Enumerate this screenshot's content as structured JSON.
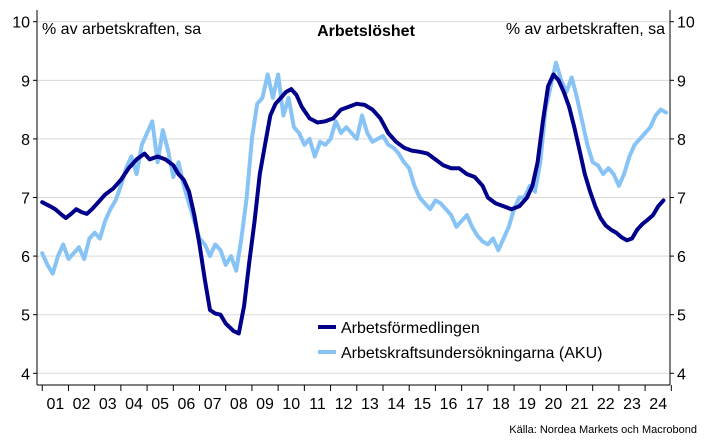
{
  "chart_data": {
    "type": "line",
    "title": "Arbetslöshet",
    "ylabel_left": "% av arbetskraften, sa",
    "ylabel_right": "% av arbetskraften, sa",
    "source": "Källa: Nordea Markets och Macrobond",
    "xlim": [
      2000.8,
      2024.95
    ],
    "ylim": [
      3.8,
      10.2
    ],
    "yticks": [
      4,
      5,
      6,
      7,
      8,
      9,
      10
    ],
    "xticks": [
      {
        "label": "01",
        "x": 2001.5
      },
      {
        "label": "02",
        "x": 2002.5
      },
      {
        "label": "03",
        "x": 2003.5
      },
      {
        "label": "04",
        "x": 2004.5
      },
      {
        "label": "05",
        "x": 2005.5
      },
      {
        "label": "06",
        "x": 2006.5
      },
      {
        "label": "07",
        "x": 2007.5
      },
      {
        "label": "08",
        "x": 2008.5
      },
      {
        "label": "09",
        "x": 2009.5
      },
      {
        "label": "10",
        "x": 2010.5
      },
      {
        "label": "11",
        "x": 2011.5
      },
      {
        "label": "12",
        "x": 2012.5
      },
      {
        "label": "13",
        "x": 2013.5
      },
      {
        "label": "14",
        "x": 2014.5
      },
      {
        "label": "15",
        "x": 2015.5
      },
      {
        "label": "16",
        "x": 2016.5
      },
      {
        "label": "17",
        "x": 2017.5
      },
      {
        "label": "18",
        "x": 2018.5
      },
      {
        "label": "19",
        "x": 2019.5
      },
      {
        "label": "20",
        "x": 2020.5
      },
      {
        "label": "21",
        "x": 2021.5
      },
      {
        "label": "22",
        "x": 2022.5
      },
      {
        "label": "23",
        "x": 2023.5
      },
      {
        "label": "24",
        "x": 2024.5
      }
    ],
    "grid": "horizontal",
    "legend_position": "bottom-right",
    "series": [
      {
        "name": "Arbetsförmedlingen",
        "color": "#00008b",
        "points": [
          [
            2001.0,
            6.92
          ],
          [
            2001.3,
            6.85
          ],
          [
            2001.5,
            6.8
          ],
          [
            2001.7,
            6.72
          ],
          [
            2001.9,
            6.65
          ],
          [
            2002.1,
            6.72
          ],
          [
            2002.3,
            6.8
          ],
          [
            2002.5,
            6.75
          ],
          [
            2002.7,
            6.72
          ],
          [
            2002.9,
            6.8
          ],
          [
            2003.1,
            6.9
          ],
          [
            2003.4,
            7.05
          ],
          [
            2003.7,
            7.15
          ],
          [
            2004.0,
            7.3
          ],
          [
            2004.3,
            7.5
          ],
          [
            2004.6,
            7.65
          ],
          [
            2004.9,
            7.75
          ],
          [
            2005.1,
            7.65
          ],
          [
            2005.4,
            7.7
          ],
          [
            2005.7,
            7.65
          ],
          [
            2006.0,
            7.55
          ],
          [
            2006.2,
            7.4
          ],
          [
            2006.4,
            7.3
          ],
          [
            2006.6,
            7.1
          ],
          [
            2006.8,
            6.7
          ],
          [
            2007.0,
            6.2
          ],
          [
            2007.2,
            5.6
          ],
          [
            2007.4,
            5.08
          ],
          [
            2007.6,
            5.02
          ],
          [
            2007.8,
            5.0
          ],
          [
            2008.0,
            4.85
          ],
          [
            2008.3,
            4.72
          ],
          [
            2008.5,
            4.68
          ],
          [
            2008.7,
            5.15
          ],
          [
            2008.9,
            5.9
          ],
          [
            2009.1,
            6.6
          ],
          [
            2009.3,
            7.4
          ],
          [
            2009.5,
            7.9
          ],
          [
            2009.7,
            8.4
          ],
          [
            2009.9,
            8.6
          ],
          [
            2010.1,
            8.7
          ],
          [
            2010.3,
            8.8
          ],
          [
            2010.5,
            8.85
          ],
          [
            2010.7,
            8.75
          ],
          [
            2010.9,
            8.55
          ],
          [
            2011.2,
            8.35
          ],
          [
            2011.5,
            8.28
          ],
          [
            2011.8,
            8.3
          ],
          [
            2012.1,
            8.35
          ],
          [
            2012.4,
            8.5
          ],
          [
            2012.7,
            8.55
          ],
          [
            2013.0,
            8.6
          ],
          [
            2013.3,
            8.58
          ],
          [
            2013.6,
            8.5
          ],
          [
            2013.9,
            8.35
          ],
          [
            2014.2,
            8.1
          ],
          [
            2014.5,
            7.95
          ],
          [
            2014.8,
            7.85
          ],
          [
            2015.1,
            7.8
          ],
          [
            2015.4,
            7.78
          ],
          [
            2015.7,
            7.75
          ],
          [
            2016.0,
            7.65
          ],
          [
            2016.3,
            7.55
          ],
          [
            2016.6,
            7.5
          ],
          [
            2016.9,
            7.5
          ],
          [
            2017.2,
            7.4
          ],
          [
            2017.5,
            7.35
          ],
          [
            2017.8,
            7.2
          ],
          [
            2018.0,
            7.0
          ],
          [
            2018.3,
            6.9
          ],
          [
            2018.6,
            6.85
          ],
          [
            2018.9,
            6.8
          ],
          [
            2019.2,
            6.85
          ],
          [
            2019.5,
            7.0
          ],
          [
            2019.7,
            7.2
          ],
          [
            2019.9,
            7.6
          ],
          [
            2020.1,
            8.3
          ],
          [
            2020.3,
            8.9
          ],
          [
            2020.5,
            9.1
          ],
          [
            2020.7,
            9.0
          ],
          [
            2020.9,
            8.8
          ],
          [
            2021.1,
            8.55
          ],
          [
            2021.3,
            8.2
          ],
          [
            2021.5,
            7.8
          ],
          [
            2021.7,
            7.4
          ],
          [
            2021.9,
            7.1
          ],
          [
            2022.1,
            6.85
          ],
          [
            2022.3,
            6.65
          ],
          [
            2022.5,
            6.52
          ],
          [
            2022.7,
            6.45
          ],
          [
            2022.9,
            6.4
          ],
          [
            2023.1,
            6.32
          ],
          [
            2023.3,
            6.27
          ],
          [
            2023.5,
            6.3
          ],
          [
            2023.7,
            6.45
          ],
          [
            2023.9,
            6.55
          ],
          [
            2024.1,
            6.62
          ],
          [
            2024.3,
            6.7
          ],
          [
            2024.5,
            6.85
          ],
          [
            2024.7,
            6.95
          ]
        ]
      },
      {
        "name": "Arbetskraftsundersökningarna (AKU)",
        "color": "#87c4f5",
        "points": [
          [
            2001.0,
            6.05
          ],
          [
            2001.2,
            5.85
          ],
          [
            2001.4,
            5.7
          ],
          [
            2001.6,
            6.0
          ],
          [
            2001.8,
            6.2
          ],
          [
            2002.0,
            5.95
          ],
          [
            2002.2,
            6.05
          ],
          [
            2002.4,
            6.15
          ],
          [
            2002.6,
            5.95
          ],
          [
            2002.8,
            6.3
          ],
          [
            2003.0,
            6.4
          ],
          [
            2003.2,
            6.3
          ],
          [
            2003.4,
            6.6
          ],
          [
            2003.6,
            6.8
          ],
          [
            2003.8,
            6.95
          ],
          [
            2004.0,
            7.2
          ],
          [
            2004.2,
            7.5
          ],
          [
            2004.4,
            7.7
          ],
          [
            2004.6,
            7.4
          ],
          [
            2004.8,
            7.9
          ],
          [
            2005.0,
            8.1
          ],
          [
            2005.2,
            8.3
          ],
          [
            2005.4,
            7.6
          ],
          [
            2005.6,
            8.15
          ],
          [
            2005.8,
            7.8
          ],
          [
            2006.0,
            7.35
          ],
          [
            2006.2,
            7.6
          ],
          [
            2006.4,
            7.2
          ],
          [
            2006.6,
            6.9
          ],
          [
            2006.8,
            6.6
          ],
          [
            2007.0,
            6.3
          ],
          [
            2007.2,
            6.2
          ],
          [
            2007.4,
            6.0
          ],
          [
            2007.6,
            6.2
          ],
          [
            2007.8,
            6.1
          ],
          [
            2008.0,
            5.85
          ],
          [
            2008.2,
            6.0
          ],
          [
            2008.4,
            5.75
          ],
          [
            2008.6,
            6.3
          ],
          [
            2008.8,
            7.0
          ],
          [
            2009.0,
            8.0
          ],
          [
            2009.2,
            8.6
          ],
          [
            2009.4,
            8.7
          ],
          [
            2009.6,
            9.1
          ],
          [
            2009.8,
            8.7
          ],
          [
            2010.0,
            9.1
          ],
          [
            2010.2,
            8.4
          ],
          [
            2010.4,
            8.7
          ],
          [
            2010.6,
            8.2
          ],
          [
            2010.8,
            8.1
          ],
          [
            2011.0,
            7.9
          ],
          [
            2011.2,
            8.0
          ],
          [
            2011.4,
            7.7
          ],
          [
            2011.6,
            7.95
          ],
          [
            2011.8,
            7.9
          ],
          [
            2012.0,
            8.0
          ],
          [
            2012.2,
            8.3
          ],
          [
            2012.4,
            8.1
          ],
          [
            2012.6,
            8.2
          ],
          [
            2012.8,
            8.1
          ],
          [
            2013.0,
            8.0
          ],
          [
            2013.2,
            8.4
          ],
          [
            2013.4,
            8.1
          ],
          [
            2013.6,
            7.95
          ],
          [
            2013.8,
            8.0
          ],
          [
            2014.0,
            8.05
          ],
          [
            2014.2,
            7.9
          ],
          [
            2014.4,
            7.85
          ],
          [
            2014.6,
            7.75
          ],
          [
            2014.8,
            7.6
          ],
          [
            2015.0,
            7.5
          ],
          [
            2015.2,
            7.2
          ],
          [
            2015.4,
            7.0
          ],
          [
            2015.6,
            6.9
          ],
          [
            2015.8,
            6.8
          ],
          [
            2016.0,
            6.95
          ],
          [
            2016.2,
            6.9
          ],
          [
            2016.4,
            6.8
          ],
          [
            2016.6,
            6.7
          ],
          [
            2016.8,
            6.5
          ],
          [
            2017.0,
            6.6
          ],
          [
            2017.2,
            6.7
          ],
          [
            2017.4,
            6.5
          ],
          [
            2017.6,
            6.35
          ],
          [
            2017.8,
            6.25
          ],
          [
            2018.0,
            6.2
          ],
          [
            2018.2,
            6.3
          ],
          [
            2018.4,
            6.1
          ],
          [
            2018.6,
            6.3
          ],
          [
            2018.8,
            6.5
          ],
          [
            2019.0,
            6.8
          ],
          [
            2019.2,
            7.0
          ],
          [
            2019.4,
            7.0
          ],
          [
            2019.6,
            7.2
          ],
          [
            2019.8,
            7.1
          ],
          [
            2020.0,
            7.6
          ],
          [
            2020.2,
            8.5
          ],
          [
            2020.4,
            8.9
          ],
          [
            2020.6,
            9.3
          ],
          [
            2020.8,
            9.0
          ],
          [
            2021.0,
            8.8
          ],
          [
            2021.2,
            9.05
          ],
          [
            2021.4,
            8.7
          ],
          [
            2021.6,
            8.3
          ],
          [
            2021.8,
            7.9
          ],
          [
            2022.0,
            7.6
          ],
          [
            2022.2,
            7.55
          ],
          [
            2022.4,
            7.4
          ],
          [
            2022.6,
            7.5
          ],
          [
            2022.8,
            7.4
          ],
          [
            2023.0,
            7.2
          ],
          [
            2023.2,
            7.4
          ],
          [
            2023.4,
            7.7
          ],
          [
            2023.6,
            7.9
          ],
          [
            2023.8,
            8.0
          ],
          [
            2024.0,
            8.1
          ],
          [
            2024.2,
            8.2
          ],
          [
            2024.4,
            8.4
          ],
          [
            2024.6,
            8.5
          ],
          [
            2024.8,
            8.45
          ]
        ]
      }
    ]
  }
}
